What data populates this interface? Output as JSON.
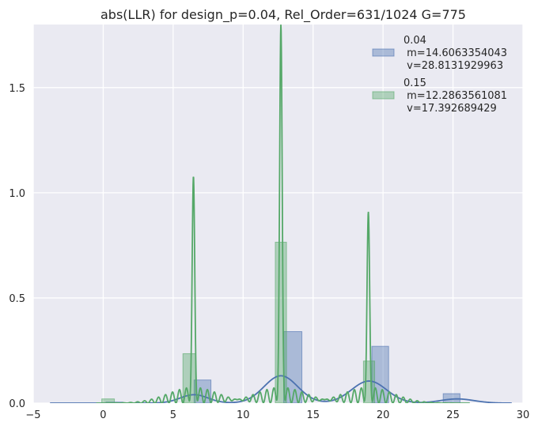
{
  "chart_data": {
    "type": "histogram_with_kde",
    "title": "abs(LLR) for design_p=0.04, Rel_Order=631/1024 G=775",
    "xlabel": "",
    "ylabel": "",
    "xlim": [
      -5,
      30
    ],
    "ylim": [
      0,
      1.8
    ],
    "x_ticks": [
      -5,
      0,
      5,
      10,
      15,
      20,
      25,
      30
    ],
    "x_tick_labels": [
      "−5",
      "0",
      "5",
      "10",
      "15",
      "20",
      "25",
      "30"
    ],
    "y_ticks": [
      0,
      0.5,
      1.0,
      1.5
    ],
    "y_tick_labels": [
      "0.0",
      "0.5",
      "1.0",
      "1.5"
    ],
    "grid": true,
    "legend_position": "top-right",
    "colors": {
      "background": "#eaeaf2",
      "grid": "#ffffff",
      "series1": "#4c72b0",
      "series2": "#55a868",
      "text": "#262626"
    },
    "series": [
      {
        "name": "0.04",
        "legend_lines": [
          "0.04",
          " m=14.6063354043",
          " v=28.8131929963"
        ],
        "bars": [
          {
            "x0": 0.2,
            "x1": 1.4,
            "h": 0.005
          },
          {
            "x0": 6.5,
            "x1": 7.7,
            "h": 0.11
          },
          {
            "x0": 12.9,
            "x1": 14.2,
            "h": 0.34
          },
          {
            "x0": 19.2,
            "x1": 20.4,
            "h": 0.27
          },
          {
            "x0": 24.3,
            "x1": 25.5,
            "h": 0.045
          }
        ],
        "kde_peaks": [
          {
            "mu": 6.5,
            "sigma": 1.0,
            "h": 0.04
          },
          {
            "mu": 12.7,
            "sigma": 1.2,
            "h": 0.13
          },
          {
            "mu": 19.0,
            "sigma": 1.25,
            "h": 0.105
          },
          {
            "mu": 25.3,
            "sigma": 1.2,
            "h": 0.02
          }
        ]
      },
      {
        "name": "0.15",
        "legend_lines": [
          "0.15",
          " m=12.2863561081",
          " v=17.392689429"
        ],
        "bars": [
          {
            "x0": -0.1,
            "x1": 0.8,
            "h": 0.02
          },
          {
            "x0": 5.7,
            "x1": 6.6,
            "h": 0.235
          },
          {
            "x0": 12.3,
            "x1": 13.1,
            "h": 0.765
          },
          {
            "x0": 18.6,
            "x1": 19.4,
            "h": 0.2
          }
        ],
        "kde_peaks": [
          {
            "mu": 6.45,
            "sigma": 0.09,
            "h": 1.08
          },
          {
            "mu": 12.7,
            "sigma": 0.09,
            "h": 1.8
          },
          {
            "mu": 18.95,
            "sigma": 0.09,
            "h": 0.91
          }
        ],
        "kde_ripple": {
          "amplitude": 0.075,
          "period": 0.5,
          "width": 1.8
        }
      }
    ]
  }
}
